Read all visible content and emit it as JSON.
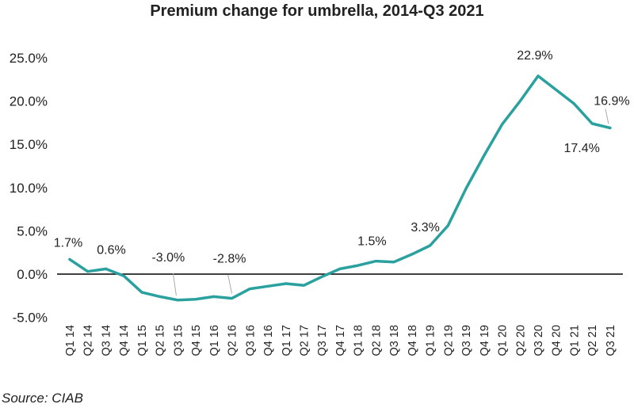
{
  "chart_data": {
    "type": "line",
    "title": "Premium change for umbrella, 2014-Q3 2021",
    "source": "Source: CIAB",
    "xlabel": "",
    "ylabel": "",
    "ylim": [
      -5,
      25
    ],
    "yticks": [
      25,
      20,
      15,
      10,
      5,
      0,
      -5
    ],
    "ytick_labels": [
      "25.0%",
      "20.0%",
      "15.0%",
      "10.0%",
      "5.0%",
      "0.0%",
      "-5.0%"
    ],
    "legend": "none",
    "grid": false,
    "line_color": "#2aa19f",
    "zero_line_color": "#000000",
    "leader_color": "#aaaaaa",
    "categories": [
      "Q1 14",
      "Q2 14",
      "Q3 14",
      "Q4 14",
      "Q1 15",
      "Q2 15",
      "Q3 15",
      "Q4 15",
      "Q1 16",
      "Q2 16",
      "Q3 16",
      "Q4 16",
      "Q1 17",
      "Q2 17",
      "Q3 17",
      "Q4 17",
      "Q1 18",
      "Q2 18",
      "Q3 18",
      "Q4 18",
      "Q1 19",
      "Q2 19",
      "Q3 19",
      "Q4 19",
      "Q1 20",
      "Q2 20",
      "Q3 20",
      "Q4 20",
      "Q1 21",
      "Q2 21",
      "Q3 21"
    ],
    "series": [
      {
        "name": "Premium change for umbrella",
        "values": [
          1.7,
          0.3,
          0.6,
          -0.2,
          -2.1,
          -2.6,
          -3.0,
          -2.9,
          -2.6,
          -2.8,
          -1.7,
          -1.4,
          -1.1,
          -1.3,
          -0.3,
          0.6,
          1.0,
          1.5,
          1.4,
          2.3,
          3.3,
          5.6,
          9.9,
          13.7,
          17.3,
          20.0,
          22.9,
          21.3,
          19.7,
          17.4,
          16.9
        ]
      }
    ],
    "data_labels": [
      {
        "index": 0,
        "text": "1.7%"
      },
      {
        "index": 2,
        "text": "0.6%"
      },
      {
        "index": 6,
        "text": "-3.0%"
      },
      {
        "index": 9,
        "text": "-2.8%"
      },
      {
        "index": 17,
        "text": "1.5%"
      },
      {
        "index": 20,
        "text": "3.3%"
      },
      {
        "index": 26,
        "text": "22.9%"
      },
      {
        "index": 29,
        "text": "17.4%"
      },
      {
        "index": 30,
        "text": "16.9%"
      }
    ]
  }
}
